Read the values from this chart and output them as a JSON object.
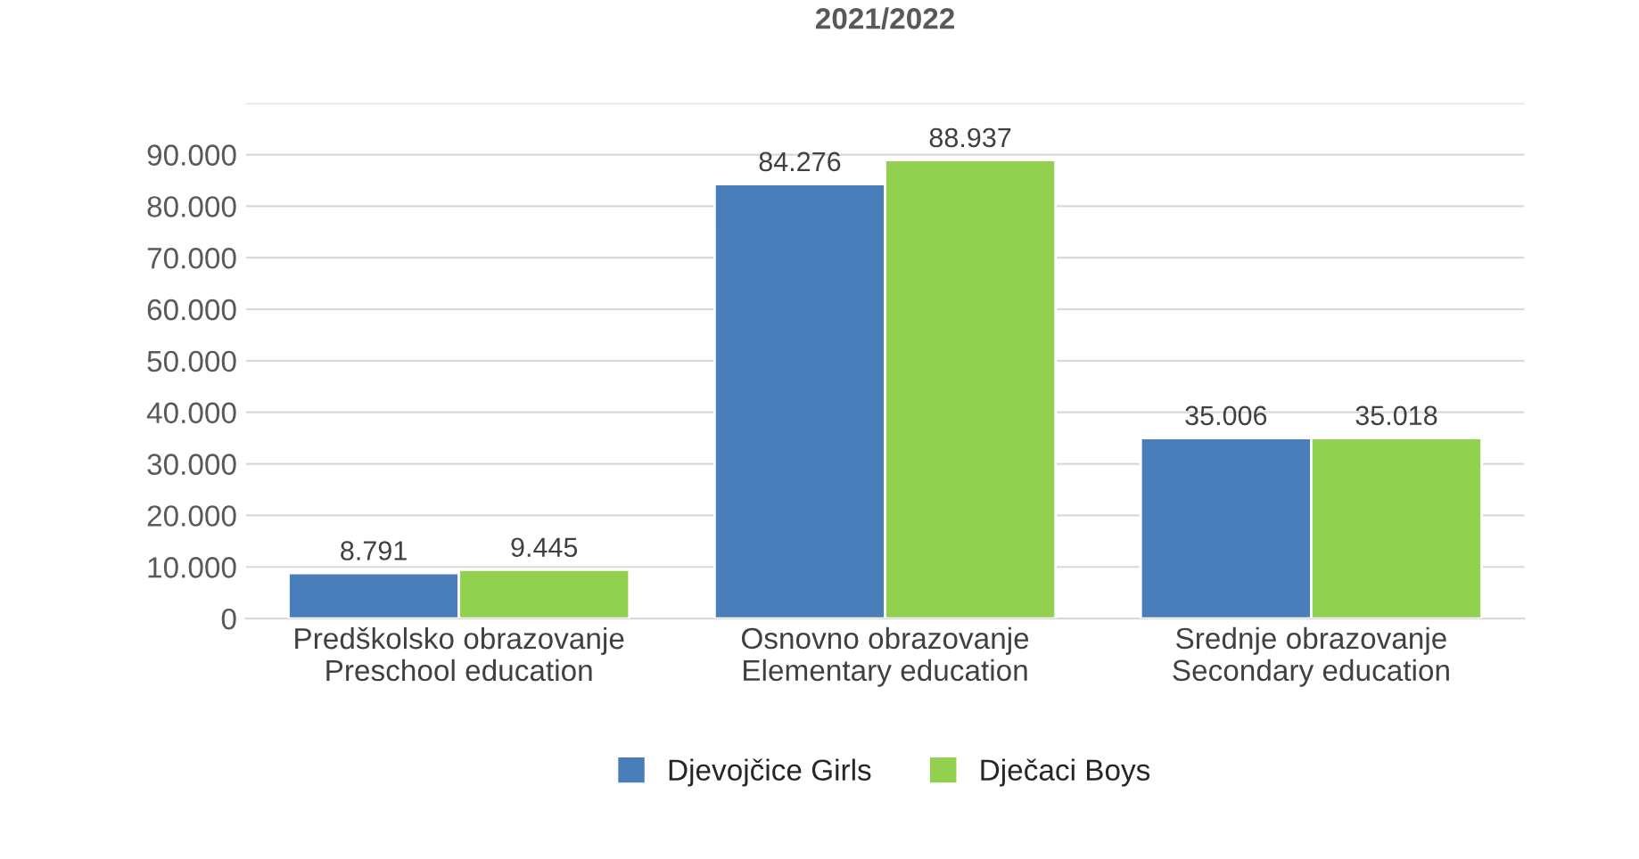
{
  "chart_data": {
    "type": "bar",
    "title": "2021/2022",
    "categories": [
      "Predškolsko obrazovanje\nPreschool education",
      "Osnovno obrazovanje\nElementary education",
      "Srednje obrazovanje\nSecondary education"
    ],
    "series": [
      {
        "name": "Djevojčice Girls",
        "color": "#4a7ebb",
        "values": [
          8791,
          84276,
          35006
        ],
        "value_labels": [
          "8.791",
          "84.276",
          "35.006"
        ]
      },
      {
        "name": "Dječaci Boys",
        "color": "#92d050",
        "values": [
          9445,
          88937,
          35018
        ],
        "value_labels": [
          "9.445",
          "88.937",
          "35.018"
        ]
      }
    ],
    "ylim": [
      0,
      100000
    ],
    "yticks": [
      {
        "value": 0,
        "label": "0"
      },
      {
        "value": 10000,
        "label": "10.000"
      },
      {
        "value": 20000,
        "label": "20.000"
      },
      {
        "value": 30000,
        "label": "30.000"
      },
      {
        "value": 40000,
        "label": "40.000"
      },
      {
        "value": 50000,
        "label": "50.000"
      },
      {
        "value": 60000,
        "label": "60.000"
      },
      {
        "value": 70000,
        "label": "70.000"
      },
      {
        "value": 80000,
        "label": "80.000"
      },
      {
        "value": 90000,
        "label": "90.000"
      },
      {
        "value": 100000,
        "label": null
      }
    ],
    "grid": "y",
    "legend": "bottom"
  }
}
